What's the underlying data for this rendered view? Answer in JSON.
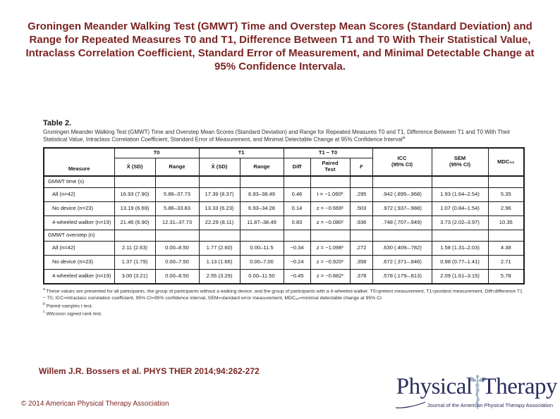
{
  "slide": {
    "title": "Groningen Meander Walking Test (GMWT) Time and Overstep Mean Scores (Standard Deviation) and Range for Repeated Measures T0 and T1, Difference Between T1 and T0 With Their Statistical Value, Intraclass Correlation Coefficient, Standard Error of Measurement, and Minimal Detectable Change at 95% Confidence Intervala.",
    "citation": "Willem J.R. Bossers et al. PHYS THER 2014;94:262-272",
    "copyright": "© 2014 American Physical Therapy Association"
  },
  "logo": {
    "word1": "Physical",
    "word2": "Therapy",
    "tagline": "Journal of the American Physical Therapy Association",
    "caduceus_icon": "caduceus-icon"
  },
  "colors": {
    "title_text": "#7b2422",
    "citation_text": "#7b2422",
    "copyright_text": "#7b2422",
    "logo_text": "#2a2e5e",
    "caduceus": "#a6b4ca",
    "table_text": "#161616",
    "table_border": "#1c1c1c"
  },
  "table": {
    "label": "Table 2.",
    "caption": "Groningen Meander Walking Test (GMWT) Time and Overstep Mean Scores (Standard Deviation) and Range for Repeated Measures T0 and T1, Difference Between T1 and T0 With Their Statistical Value, Intraclass Correlation Coefficient, Standard Error of Measurement, and Minimal Detectable Change at 95% Confidence Interval",
    "caption_marker": "a",
    "header": {
      "measure": "Measure",
      "groups": [
        {
          "label": "T0"
        },
        {
          "label": "T1"
        },
        {
          "label": "T1 − T0"
        }
      ],
      "mean_sd": "X̄ (SD)",
      "range": "Range",
      "diff": "Diff",
      "paired_line1": "Paired",
      "paired_line2": "Test",
      "p": "P",
      "icc_line1": "ICC",
      "icc_line2": "(95% CI)",
      "sem_line1": "SEM",
      "sem_line2": "(95% CI)",
      "mdc": "MDC₉₅"
    },
    "sections": [
      {
        "label": "GMWT time (s)",
        "rows": [
          {
            "measure": "All (n=42)",
            "cells": [
              "16.93 (7.90)",
              "5.86–37.73",
              "17.39 (8.37)",
              "6.93–38.49",
              "0.46",
              "t = −1.060ᵇ",
              ".295",
              ".942 (.895–.968)",
              "1.93 (1.64–2.54)",
              "5.35"
            ]
          },
          {
            "measure": "No device (n=23)",
            "cells": [
              "13.19 (6.69)",
              "5.86–33.83",
              "13.33 (6.23)",
              "6.93–34.28",
              "0.14",
              "z = −0.669ᶜ",
              ".503",
              ".972 (.937–.988)",
              "1.07 (0.84–1.54)",
              "2.96"
            ]
          },
          {
            "measure": "4-wheeled walker (n=19)",
            "cells": [
              "21.46 (6.90)",
              "12.31–37.73",
              "22.29 (8.11)",
              "11.87–38.49",
              "0.83",
              "z = −0.080ᶜ",
              ".936",
              ".748 (.707–.949)",
              "3.73 (2.02–3.97)",
              "10.35"
            ]
          }
        ]
      },
      {
        "label": "GMWT overstep (n)",
        "rows": [
          {
            "measure": "All (n=42)",
            "cells": [
              "2.11 (2.63)",
              "0.00–8.50",
              "1.77 (2.60)",
              "0.00–11.5",
              "−0.34",
              "z = −1.098ᶜ",
              ".272",
              ".630 (.409–.782)",
              "1.58 (1.31–2.03)",
              "4.38"
            ]
          },
          {
            "measure": "No device (n=23)",
            "cells": [
              "1.37 (1.79)",
              "0.00–7.50",
              "1.13 (1.66)",
              "0.00–7.00",
              "−0.24",
              "z = −0.920ᶜ",
              ".358",
              ".672 (.371–.846)",
              "0.98 (0.77–1.41)",
              "2.71"
            ]
          },
          {
            "measure": "4-wheeled walker (n=19)",
            "cells": [
              "3.00 (3.21)",
              "0.00–8.50",
              "2.55 (3.29)",
              "0.00–11.50",
              "−0.45",
              "z = −0.882ᶜ",
              ".378",
              ".578 (.179–.813)",
              "2.09 (1.61–3.15)",
              "5.78"
            ]
          }
        ]
      }
    ],
    "footnotes": [
      {
        "marker": "a",
        "text": "These values are presented for all participants, the group of participants without a walking device, and the group of participants with a 4-wheeled walker. T0=pretest measurement, T1=posttest measurement, Diff=difference T1 − T0, ICC=intraclass correlation coefficient, 95% CI=95% confidence interval, SEM=standard error measurement, MDC₉₅=minimal detectable change at 95% CI."
      },
      {
        "marker": "b",
        "text": "Paired-samples t test."
      },
      {
        "marker": "c",
        "text": "Wilcoxon signed rank test."
      }
    ]
  }
}
